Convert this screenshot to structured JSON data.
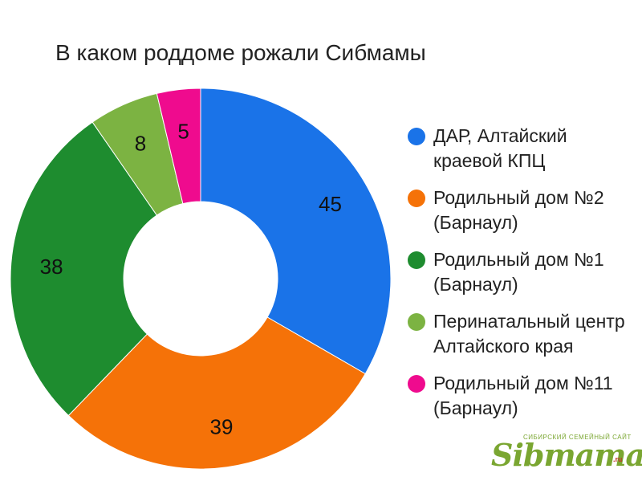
{
  "title": "В каком роддоме рожали Сибмамы",
  "chart_data": {
    "type": "pie",
    "donut": true,
    "title": "В каком роддоме рожали Сибмамы",
    "slices": [
      {
        "label": "ДАР, Алтайский краевой КПЦ",
        "value": 45,
        "color": "#1a73e8"
      },
      {
        "label": "Родильный дом №2 (Барнаул)",
        "value": 39,
        "color": "#f57208"
      },
      {
        "label": "Родильный дом №1 (Барнаул)",
        "value": 38,
        "color": "#1e8c2f"
      },
      {
        "label": "Перинатальный центр Алтайского края",
        "value": 8,
        "color": "#7cb342"
      },
      {
        "label": "Родильный дом №11 (Барнаул)",
        "value": 5,
        "color": "#ef0b8e"
      }
    ],
    "legend_position": "right",
    "data_labels": true
  },
  "watermark": {
    "tagline": "СИБИРСКИЙ СЕМЕЙНЫЙ САЙТ",
    "logo": "Sibmama",
    "ru": ".ru"
  }
}
